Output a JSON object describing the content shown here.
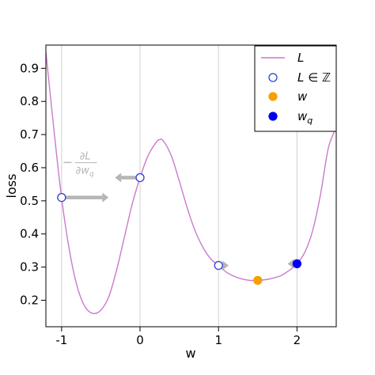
{
  "chart_data": {
    "type": "line",
    "title": "",
    "xlabel": "w",
    "ylabel": "loss",
    "xlim": [
      -1.2,
      2.5
    ],
    "ylim": [
      0.12,
      0.97
    ],
    "x_ticks": [
      -1,
      0,
      1,
      2
    ],
    "x_tick_labels": [
      "-1",
      "0",
      "1",
      "2"
    ],
    "y_ticks": [
      0.2,
      0.3,
      0.4,
      0.5,
      0.6,
      0.7,
      0.8,
      0.9
    ],
    "y_tick_labels": [
      "0.2",
      "0.3",
      "0.4",
      "0.5",
      "0.6",
      "0.7",
      "0.8",
      "0.9"
    ],
    "vertical_grid_at": [
      -1,
      0,
      1,
      2
    ],
    "legend_position": "top-right",
    "series": [
      {
        "name": "L",
        "kind": "line",
        "color": "#cc79cc",
        "x": [
          -1.2,
          -1.1,
          -1.0,
          -0.9,
          -0.8,
          -0.7,
          -0.6,
          -0.5,
          -0.4,
          -0.3,
          -0.2,
          -0.1,
          0.0,
          0.1,
          0.2,
          0.25,
          0.3,
          0.4,
          0.5,
          0.6,
          0.7,
          0.8,
          0.9,
          1.0,
          1.1,
          1.2,
          1.3,
          1.4,
          1.5,
          1.6,
          1.7,
          1.8,
          1.9,
          2.0,
          2.1,
          2.2,
          2.3,
          2.4,
          2.5
        ],
        "y": [
          0.95,
          0.72,
          0.51,
          0.35,
          0.24,
          0.18,
          0.16,
          0.17,
          0.21,
          0.29,
          0.39,
          0.49,
          0.57,
          0.635,
          0.675,
          0.685,
          0.68,
          0.635,
          0.56,
          0.48,
          0.41,
          0.36,
          0.325,
          0.305,
          0.285,
          0.272,
          0.264,
          0.26,
          0.26,
          0.262,
          0.267,
          0.275,
          0.29,
          0.31,
          0.345,
          0.41,
          0.52,
          0.66,
          0.72
        ]
      },
      {
        "name": "L ∈ ℤ",
        "kind": "scatter",
        "marker": "open-circle",
        "color": "#2b3fd6",
        "x": [
          -1,
          0,
          1
        ],
        "y": [
          0.51,
          0.57,
          0.305
        ]
      },
      {
        "name": "w",
        "kind": "scatter",
        "marker": "filled-circle",
        "color": "#f5a000",
        "x": [
          1.5
        ],
        "y": [
          0.26
        ]
      },
      {
        "name": "w_q",
        "kind": "scatter",
        "marker": "filled-circle",
        "color": "#0000ee",
        "x": [
          2
        ],
        "y": [
          0.31
        ]
      }
    ],
    "gradient_arrows": {
      "color": "#b5b5b5",
      "items": [
        {
          "x": -1,
          "y": 0.51,
          "dx": 0.6
        },
        {
          "x": 0,
          "y": 0.57,
          "dx": -0.32
        },
        {
          "x": 1,
          "y": 0.305,
          "dx": 0.13
        },
        {
          "x": 2,
          "y": 0.31,
          "dx": -0.12
        }
      ]
    },
    "annotations": [
      {
        "text_minus": "−",
        "numerator": "∂L",
        "denominator": "∂w",
        "denominator_sub": "q",
        "color": "#b5b5b5",
        "x": -0.7,
        "y": 0.615
      }
    ],
    "legend": [
      {
        "label": "L",
        "italic_base": "L",
        "suffix": ""
      },
      {
        "label": "L ∈ ℤ",
        "italic_base": "L",
        "suffix": " ∈ ℤ"
      },
      {
        "label": "w",
        "italic_base": "w",
        "suffix": ""
      },
      {
        "label": "w_q",
        "italic_base": "w",
        "sub": "q"
      }
    ]
  }
}
